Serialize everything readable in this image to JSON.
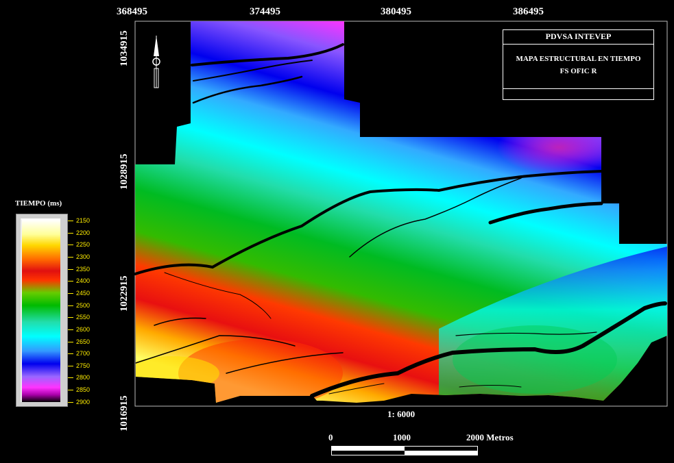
{
  "map": {
    "x_ticks": [
      "368495",
      "374495",
      "380495",
      "386495"
    ],
    "y_ticks": [
      "1034915",
      "1028915",
      "1022915",
      "1016915"
    ],
    "scale_ratio": "1: 6000",
    "scale_labels": [
      "0",
      "1000",
      "2000  Metros"
    ],
    "title_box": {
      "org": "PDVSA INTEVEP",
      "line1": "MAPA ESTRUCTURAL EN TIEMPO",
      "line2": "FS OFIC R"
    }
  },
  "legend": {
    "title": "TIEMPO (ms)",
    "values": [
      "2150",
      "2200",
      "2250",
      "2300",
      "2350",
      "2400",
      "2450",
      "2500",
      "2550",
      "2600",
      "2650",
      "2700",
      "2750",
      "2800",
      "2850",
      "2900"
    ],
    "label_color": "#ffee00"
  },
  "colors": {
    "shallow": "#ffff66",
    "mid_shallow": "#e01010",
    "mid": "#00bb00",
    "mid_deep": "#00ffff",
    "deep": "#0000ee",
    "deepest": "#ff33ff"
  }
}
